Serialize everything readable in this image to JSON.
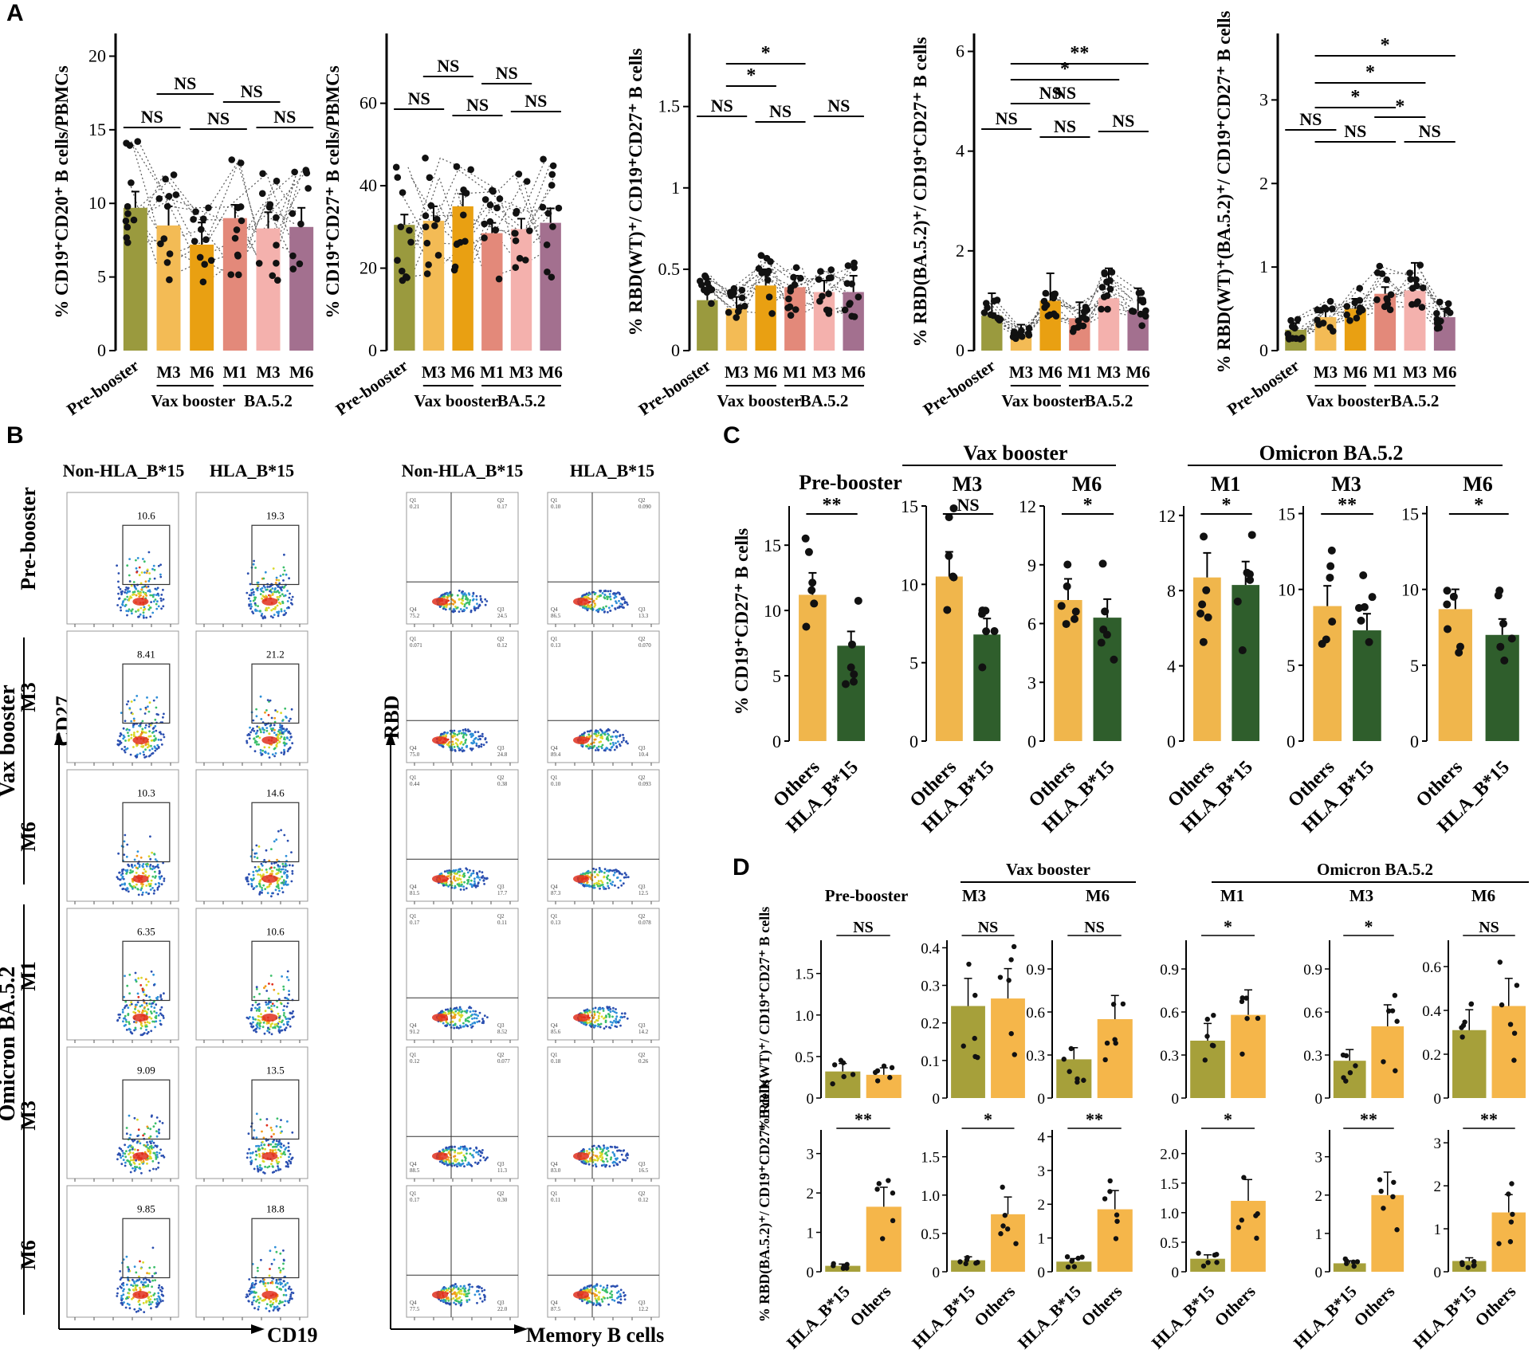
{
  "figure": {
    "panel_labels": [
      "A",
      "B",
      "C",
      "D"
    ]
  },
  "panelB": {
    "cd27_headers": [
      "Non-HLA_B*15",
      "HLA_B*15"
    ],
    "rbd_headers": [
      "Non-HLA_B*15",
      "HLA_B*15"
    ],
    "row_labels": [
      "Pre-booster",
      "M3",
      "M6",
      "M1",
      "M3",
      "M6"
    ],
    "group_labels": [
      "Vax booster",
      "Omicron BA.5.2"
    ],
    "cd27_axis": "CD27",
    "cd19_axis": "CD19",
    "rbd_axis": "RBD",
    "memb_axis": "Memory B cells",
    "cd27_gates": [
      [
        "10.6",
        "19.3"
      ],
      [
        "8.41",
        "21.2"
      ],
      [
        "10.3",
        "14.6"
      ],
      [
        "6.35",
        "10.6"
      ],
      [
        "9.09",
        "13.5"
      ],
      [
        "9.85",
        "18.8"
      ]
    ],
    "quadrants": [
      [
        [
          "0.21",
          "0.17",
          "75.2",
          "24.5"
        ],
        [
          "0.10",
          "0.090",
          "86.5",
          "13.3"
        ]
      ],
      [
        [
          "0.071",
          "0.12",
          "75.0",
          "24.8"
        ],
        [
          "0.13",
          "0.070",
          "89.4",
          "10.4"
        ]
      ],
      [
        [
          "0.44",
          "0.38",
          "81.5",
          "17.7"
        ],
        [
          "0.10",
          "0.093",
          "87.3",
          "12.5"
        ]
      ],
      [
        [
          "0.17",
          "0.11",
          "91.2",
          "8.52"
        ],
        [
          "0.13",
          "0.078",
          "85.6",
          "14.2"
        ]
      ],
      [
        [
          "0.12",
          "0.077",
          "88.5",
          "11.3"
        ],
        [
          "0.18",
          "0.26",
          "83.0",
          "16.5"
        ]
      ],
      [
        [
          "0.17",
          "0.30",
          "77.5",
          "22.0"
        ],
        [
          "0.11",
          "0.12",
          "87.5",
          "12.2"
        ]
      ]
    ],
    "quadrant_names": [
      "Q1",
      "Q2",
      "Q4",
      "Q3"
    ]
  },
  "colors": {
    "pre": "#9a9a3e",
    "vax_m3": "#f3bb55",
    "vax_m6": "#e9a012",
    "ba_m1": "#e3897a",
    "ba_m3": "#f4b1ad",
    "ba_m6": "#a3708f",
    "others_c": "#f0b64c",
    "hla_c": "#2f5e2c",
    "hla_d": "#a6a03a",
    "others_d": "#f5b64a"
  },
  "chart_data": [
    {
      "id": "A1",
      "type": "bar",
      "ylabel": "% CD19⁺CD20⁺ B cells/PBMCs",
      "categories": [
        "Pre-booster",
        "M3",
        "M6",
        "M1",
        "M3",
        "M6"
      ],
      "groups": [
        "Vax booster",
        "BA.5.2"
      ],
      "values": [
        9.7,
        8.5,
        7.2,
        9.0,
        8.3,
        8.4
      ],
      "ylim": [
        0,
        21
      ],
      "yticks": [
        0,
        5,
        10,
        15,
        20
      ],
      "comparisons": [
        {
          "from": 0,
          "to": 1,
          "label": "NS"
        },
        {
          "from": 1,
          "to": 2,
          "label": "NS"
        },
        {
          "from": 2,
          "to": 3,
          "label": "NS"
        },
        {
          "from": 3,
          "to": 4,
          "label": "NS"
        },
        {
          "from": 4,
          "to": 5,
          "label": "NS"
        }
      ]
    },
    {
      "id": "A2",
      "type": "bar",
      "ylabel": "% CD19⁺CD27⁺ B cells/PBMCs",
      "categories": [
        "Pre-booster",
        "M3",
        "M6",
        "M1",
        "M3",
        "M6"
      ],
      "groups": [
        "Vax booster",
        "BA.5.2"
      ],
      "values": [
        30.5,
        31.5,
        35.0,
        28.5,
        29.5,
        31.0
      ],
      "ylim": [
        0,
        75
      ],
      "yticks": [
        0,
        20,
        40,
        60
      ],
      "comparisons": [
        {
          "from": 0,
          "to": 1,
          "label": "NS"
        },
        {
          "from": 1,
          "to": 2,
          "label": "NS"
        },
        {
          "from": 2,
          "to": 3,
          "label": "NS"
        },
        {
          "from": 3,
          "to": 4,
          "label": "NS"
        },
        {
          "from": 4,
          "to": 5,
          "label": "NS"
        }
      ]
    },
    {
      "id": "A3",
      "type": "bar",
      "ylabel": "% RBD(WT)⁺/ CD19⁺CD27⁺ B cells",
      "categories": [
        "Pre-booster",
        "M3",
        "M6",
        "M1",
        "M3",
        "M6"
      ],
      "groups": [
        "Vax booster",
        "BA.5.2"
      ],
      "values": [
        0.31,
        0.26,
        0.4,
        0.39,
        0.36,
        0.36
      ],
      "ylim": [
        0,
        1.9
      ],
      "yticks": [
        0,
        0.5,
        1.0,
        1.5
      ],
      "comparisons": [
        {
          "from": 0,
          "to": 1,
          "label": "NS"
        },
        {
          "from": 1,
          "to": 2,
          "label": "*"
        },
        {
          "from": 1,
          "to": 3,
          "label": "*"
        },
        {
          "from": 2,
          "to": 3,
          "label": "NS"
        },
        {
          "from": 4,
          "to": 5,
          "label": "NS"
        }
      ]
    },
    {
      "id": "A4",
      "type": "bar",
      "ylabel": "% RBD(BA.5.2)⁺/ CD19⁺CD27⁺ B cells",
      "categories": [
        "Pre-booster",
        "M3",
        "M6",
        "M1",
        "M3",
        "M6"
      ],
      "groups": [
        "Vax booster",
        "BA.5.2"
      ],
      "values": [
        0.7,
        0.3,
        1.0,
        0.65,
        1.05,
        0.8
      ],
      "ylim": [
        0,
        6.2
      ],
      "yticks": [
        0,
        2,
        4,
        6
      ],
      "comparisons": [
        {
          "from": 0,
          "to": 1,
          "label": "NS"
        },
        {
          "from": 1,
          "to": 5,
          "label": "**"
        },
        {
          "from": 1,
          "to": 4,
          "label": "*"
        },
        {
          "from": 1,
          "to": 3,
          "label": "NS"
        },
        {
          "from": 2,
          "to": 3,
          "label": "NS"
        },
        {
          "from": 2,
          "to": 3,
          "label": "NS"
        },
        {
          "from": 4,
          "to": 5,
          "label": "NS"
        }
      ]
    },
    {
      "id": "A5",
      "type": "bar",
      "ylabel": "% RBD(WT)⁺(BA.5.2)⁺/ CD19⁺CD27⁺ B cells",
      "categories": [
        "Pre-booster",
        "M3",
        "M6",
        "M1",
        "M3",
        "M6"
      ],
      "groups": [
        "Vax booster",
        "BA.5.2"
      ],
      "values": [
        0.25,
        0.4,
        0.5,
        0.68,
        0.72,
        0.4
      ],
      "ylim": [
        0,
        3.7
      ],
      "yticks": [
        0,
        1.0,
        2.0,
        3.0
      ],
      "comparisons": [
        {
          "from": 0,
          "to": 1,
          "label": "NS"
        },
        {
          "from": 1,
          "to": 5,
          "label": "*"
        },
        {
          "from": 1,
          "to": 4,
          "label": "*"
        },
        {
          "from": 1,
          "to": 3,
          "label": "*"
        },
        {
          "from": 3,
          "to": 4,
          "label": "*"
        },
        {
          "from": 1,
          "to": 3,
          "label": "NS"
        },
        {
          "from": 4,
          "to": 5,
          "label": "NS"
        }
      ]
    },
    {
      "id": "C",
      "type": "bar",
      "ylabel": "% CD19⁺CD27⁺ B cells",
      "titles": [
        "Pre-booster",
        "M3",
        "M6",
        "M1",
        "M3",
        "M6"
      ],
      "groups": [
        "Vax booster",
        "Omicron BA.5.2"
      ],
      "categories": [
        "Others",
        "HLA_B*15"
      ],
      "panels": [
        {
          "values": [
            11.2,
            7.3
          ],
          "ylim": [
            0,
            18
          ],
          "yticks": [
            0,
            5,
            10,
            15
          ],
          "sig": "**"
        },
        {
          "values": [
            10.5,
            6.8
          ],
          "ylim": [
            0,
            15
          ],
          "yticks": [
            0,
            5,
            10,
            15
          ],
          "sig": "NS"
        },
        {
          "values": [
            7.2,
            6.3
          ],
          "ylim": [
            0,
            12
          ],
          "yticks": [
            0,
            3,
            6,
            9,
            12
          ],
          "sig": "*"
        },
        {
          "values": [
            8.7,
            8.3
          ],
          "ylim": [
            0,
            12.5
          ],
          "yticks": [
            0,
            4,
            8,
            12
          ],
          "sig": "*"
        },
        {
          "values": [
            8.9,
            7.3
          ],
          "ylim": [
            0,
            15.5
          ],
          "yticks": [
            0,
            5,
            10,
            15
          ],
          "sig": "**"
        },
        {
          "values": [
            8.7,
            7.0
          ],
          "ylim": [
            0,
            15.5
          ],
          "yticks": [
            0,
            5,
            10,
            15
          ],
          "sig": "*"
        }
      ]
    },
    {
      "id": "D",
      "type": "bar",
      "titles": [
        "Pre-booster",
        "M3",
        "M6",
        "M1",
        "M3",
        "M6"
      ],
      "groups": [
        "Vax booster",
        "Omicron BA.5.2"
      ],
      "categories": [
        "HLA_B*15",
        "Others"
      ],
      "rows": [
        {
          "ylabel": "% RBD(WT)⁺/ CD19⁺CD27⁺ B cells",
          "panels": [
            {
              "values": [
                0.32,
                0.28
              ],
              "ylim": [
                0,
                1.9
              ],
              "yticks": [
                0,
                0.5,
                1.0,
                1.5
              ],
              "ticklabels": [
                "0",
                "0.5",
                "1.0",
                "1.5"
              ],
              "sig": "NS"
            },
            {
              "values": [
                0.245,
                0.265
              ],
              "ylim": [
                0,
                0.42
              ],
              "yticks": [
                0,
                0.1,
                0.2,
                0.3,
                0.4
              ],
              "ticklabels": [
                "0",
                "0.1",
                "0.2",
                "0.3",
                "0.4"
              ],
              "sig": "NS"
            },
            {
              "values": [
                0.27,
                0.55
              ],
              "ylim": [
                0,
                1.1
              ],
              "yticks": [
                0,
                0.3,
                0.6,
                0.9
              ],
              "ticklabels": [
                "0",
                "0.3",
                "0.6",
                "0.9"
              ],
              "sig": "NS"
            },
            {
              "values": [
                0.4,
                0.58
              ],
              "ylim": [
                0,
                1.1
              ],
              "yticks": [
                0,
                0.3,
                0.6,
                0.9
              ],
              "ticklabels": [
                "0",
                "0.3",
                "0.6",
                "0.9"
              ],
              "sig": "*"
            },
            {
              "values": [
                0.26,
                0.5
              ],
              "ylim": [
                0,
                1.1
              ],
              "yticks": [
                0,
                0.3,
                0.6,
                0.9
              ],
              "ticklabels": [
                "0",
                "0.3",
                "0.6",
                "0.9"
              ],
              "sig": "*"
            },
            {
              "values": [
                0.31,
                0.42
              ],
              "ylim": [
                0,
                0.72
              ],
              "yticks": [
                0,
                0.2,
                0.4,
                0.6
              ],
              "ticklabels": [
                "0",
                "0.2",
                "0.4",
                "0.6"
              ],
              "sig": "NS"
            }
          ]
        },
        {
          "ylabel": "% RBD(BA.5.2)⁺/ CD19⁺CD27⁺ B cells",
          "panels": [
            {
              "values": [
                0.15,
                1.65
              ],
              "ylim": [
                0,
                3.6
              ],
              "yticks": [
                0,
                1,
                2,
                3
              ],
              "ticklabels": [
                "0",
                "1",
                "2",
                "3"
              ],
              "sig": "**"
            },
            {
              "values": [
                0.15,
                0.75
              ],
              "ylim": [
                0,
                1.85
              ],
              "yticks": [
                0,
                0.5,
                1.0,
                1.5
              ],
              "ticklabels": [
                "0",
                "0.5",
                "1.0",
                "1.5"
              ],
              "sig": "*"
            },
            {
              "values": [
                0.3,
                1.85
              ],
              "ylim": [
                0,
                4.2
              ],
              "yticks": [
                0,
                1,
                2,
                3,
                4
              ],
              "ticklabels": [
                "0",
                "1",
                "2",
                "3",
                "4"
              ],
              "sig": "**"
            },
            {
              "values": [
                0.22,
                1.2
              ],
              "ylim": [
                0,
                2.4
              ],
              "yticks": [
                0,
                0.5,
                1.0,
                1.5,
                2.0
              ],
              "ticklabels": [
                "0",
                "0.5",
                "1.0",
                "1.5",
                "2.0"
              ],
              "sig": "*"
            },
            {
              "values": [
                0.22,
                2.0
              ],
              "ylim": [
                0,
                3.7
              ],
              "yticks": [
                0,
                1,
                2,
                3
              ],
              "ticklabels": [
                "0",
                "1",
                "2",
                "3"
              ],
              "sig": "**"
            },
            {
              "values": [
                0.25,
                1.38
              ],
              "ylim": [
                0,
                3.3
              ],
              "yticks": [
                0,
                1,
                2,
                3
              ],
              "ticklabels": [
                "0",
                "1",
                "2",
                "3"
              ],
              "sig": "**"
            }
          ]
        }
      ]
    }
  ]
}
